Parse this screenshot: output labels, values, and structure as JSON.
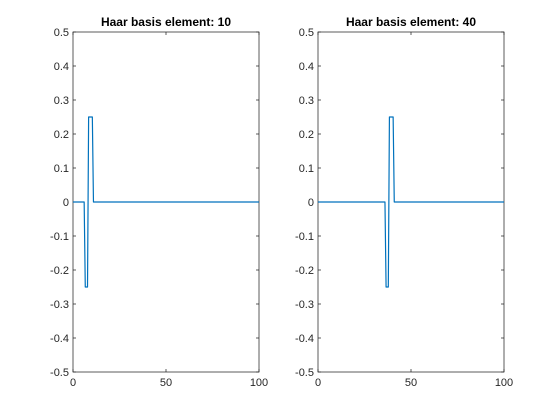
{
  "chart_data": [
    {
      "type": "line",
      "title": "Haar basis element: 10",
      "xlabel": "",
      "ylabel": "",
      "xlim": [
        0,
        100
      ],
      "ylim": [
        -0.5,
        0.5
      ],
      "xticks": [
        0,
        50,
        100
      ],
      "yticks": [
        -0.5,
        -0.4,
        -0.3,
        -0.2,
        -0.1,
        0,
        0.1,
        0.2,
        0.3,
        0.4,
        0.5
      ],
      "grid": false,
      "legend": "none",
      "line_color": "#0072BD",
      "series": [
        {
          "x": [
            0,
            4,
            6,
            6.6,
            7.2,
            7.8,
            8.4,
            9.2,
            9.8,
            10.4,
            11,
            11.4,
            13,
            100
          ],
          "y": [
            0,
            0,
            0,
            -0.25,
            -0.25,
            -0.25,
            0.25,
            0.25,
            0.25,
            0.25,
            0,
            0,
            0,
            0
          ]
        }
      ]
    },
    {
      "type": "line",
      "title": "Haar basis element: 40",
      "xlabel": "",
      "ylabel": "",
      "xlim": [
        0,
        100
      ],
      "ylim": [
        -0.5,
        0.5
      ],
      "xticks": [
        0,
        50,
        100
      ],
      "yticks": [
        -0.5,
        -0.4,
        -0.3,
        -0.2,
        -0.1,
        0,
        0.1,
        0.2,
        0.3,
        0.4,
        0.5
      ],
      "grid": false,
      "legend": "none",
      "line_color": "#0072BD",
      "series": [
        {
          "x": [
            0,
            34,
            36,
            36.6,
            37.2,
            37.8,
            38.4,
            39.2,
            39.8,
            40.4,
            41,
            41.4,
            43,
            100
          ],
          "y": [
            0,
            0,
            0,
            -0.25,
            -0.25,
            -0.25,
            0.25,
            0.25,
            0.25,
            0.25,
            0,
            0,
            0,
            0
          ]
        }
      ]
    }
  ]
}
